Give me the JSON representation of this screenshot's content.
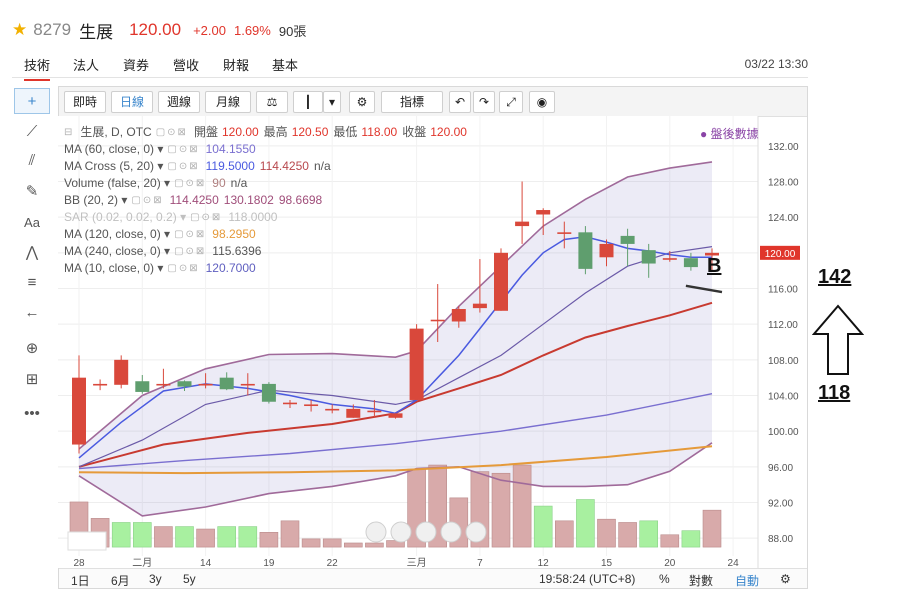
{
  "header": {
    "star_icon": "star-icon",
    "code": "8279",
    "name": "生展",
    "price": "120.00",
    "change": "+2.00",
    "percent": "1.69%",
    "volume": "90張"
  },
  "tabs": [
    "技術",
    "法人",
    "資券",
    "營收",
    "財報",
    "基本"
  ],
  "datetime": "03/22 13:30",
  "toolbar": {
    "periods": [
      "即時",
      "日線",
      "週線",
      "月線"
    ],
    "active_period": "日線",
    "indicator_label": "指標",
    "icons": [
      "scale-icon",
      "candlestick-icon",
      "dropdown-icon",
      "settings-icon",
      "undo-icon",
      "redo-icon",
      "fullscreen-icon",
      "camera-icon"
    ]
  },
  "left_tools": [
    "crosshair-icon",
    "line-icon",
    "fork-icon",
    "brush-icon",
    "Aa",
    "pattern-icon",
    "fib-icon",
    "arrow-left-icon",
    "zoom-icon",
    "ruler-icon",
    "more-icon"
  ],
  "indicators": {
    "main": {
      "label": "生展, D, OTC",
      "open_label": "開盤",
      "open": "120.00",
      "high_label": "最高",
      "high": "120.50",
      "low_label": "最低",
      "low": "118.00",
      "close_label": "收盤",
      "close": "120.00"
    },
    "rows": [
      {
        "label": "MA (60, close, 0)",
        "values": [
          "104.1550"
        ],
        "colors": [
          "#7a6fd0"
        ]
      },
      {
        "label": "MA Cross (5, 20)",
        "values": [
          "119.5000",
          "114.4250",
          "n/a"
        ],
        "colors": [
          "#4a5ae0",
          "#b8484d",
          "#555555"
        ]
      },
      {
        "label": "Volume (false, 20)",
        "values": [
          "90",
          "n/a"
        ],
        "colors": [
          "#b08080",
          "#555555"
        ]
      },
      {
        "label": "BB (20, 2)",
        "values": [
          "114.4250",
          "130.1802",
          "98.6698"
        ],
        "colors": [
          "#a04e7a",
          "#a04e7a",
          "#a04e7a"
        ]
      },
      {
        "label": "SAR (0.02, 0.02, 0.2)",
        "values": [
          "118.0000"
        ],
        "colors": [
          "#c0c0c0"
        ],
        "faded": true
      },
      {
        "label": "MA (120, close, 0)",
        "values": [
          "98.2950"
        ],
        "colors": [
          "#e59a3a"
        ]
      },
      {
        "label": "MA (240, close, 0)",
        "values": [
          "115.6396"
        ],
        "colors": [
          "#555555"
        ]
      },
      {
        "label": "MA (10, close, 0)",
        "values": [
          "120.7000"
        ],
        "colors": [
          "#6060c0"
        ]
      }
    ]
  },
  "after_hours_label": "● 盤後數據",
  "bottom_bar": {
    "ranges": [
      "1日",
      "6月",
      "3y",
      "5y"
    ],
    "time": "19:58:24 (UTC+8)",
    "percent": "%",
    "log": "對數",
    "auto": "自動",
    "settings_icon": "gear-icon"
  },
  "annotations": {
    "b_label": "B",
    "target": "142",
    "base": "118",
    "arrow_icon": "arrow-up-icon"
  },
  "chart_data": {
    "type": "candlestick",
    "y_ticks": [
      88,
      92,
      96,
      100,
      104,
      108,
      112,
      116,
      120,
      124,
      128,
      132
    ],
    "y_range": [
      86,
      134
    ],
    "last_price_tag": "120.00",
    "x_labels": [
      {
        "i": 0,
        "label": "28"
      },
      {
        "i": 3,
        "label": "二月"
      },
      {
        "i": 6,
        "label": "14"
      },
      {
        "i": 9,
        "label": "19"
      },
      {
        "i": 12,
        "label": "22"
      },
      {
        "i": 16,
        "label": "三月"
      },
      {
        "i": 19,
        "label": "7"
      },
      {
        "i": 22,
        "label": "12"
      },
      {
        "i": 25,
        "label": "15"
      },
      {
        "i": 28,
        "label": "20"
      },
      {
        "i": 31,
        "label": "24"
      }
    ],
    "candles": [
      {
        "o": 98.5,
        "h": 108.5,
        "l": 97.5,
        "c": 106
      },
      {
        "o": 105.3,
        "h": 105.8,
        "l": 104.6,
        "c": 105.3
      },
      {
        "o": 105.2,
        "h": 108.5,
        "l": 104.8,
        "c": 108
      },
      {
        "o": 105.6,
        "h": 106.3,
        "l": 104.2,
        "c": 104.4
      },
      {
        "o": 105.3,
        "h": 107,
        "l": 104.8,
        "c": 105.3
      },
      {
        "o": 105.6,
        "h": 105.7,
        "l": 104.5,
        "c": 105
      },
      {
        "o": 105.3,
        "h": 106.5,
        "l": 104.8,
        "c": 105.3
      },
      {
        "o": 106,
        "h": 106.6,
        "l": 104.6,
        "c": 104.7
      },
      {
        "o": 105.3,
        "h": 106.5,
        "l": 104,
        "c": 105.3
      },
      {
        "o": 105.3,
        "h": 105.5,
        "l": 103.1,
        "c": 103.3
      },
      {
        "o": 103.2,
        "h": 103.5,
        "l": 102.6,
        "c": 103.2
      },
      {
        "o": 103,
        "h": 103.5,
        "l": 102.2,
        "c": 103
      },
      {
        "o": 102.5,
        "h": 103,
        "l": 102,
        "c": 102.5
      },
      {
        "o": 101.5,
        "h": 103,
        "l": 101.5,
        "c": 102.5
      },
      {
        "o": 102.3,
        "h": 103.5,
        "l": 101.5,
        "c": 102.3
      },
      {
        "o": 101.5,
        "h": 102,
        "l": 101.4,
        "c": 102
      },
      {
        "o": 103.5,
        "h": 112,
        "l": 103.5,
        "c": 111.5
      },
      {
        "o": 112.5,
        "h": 116.5,
        "l": 110,
        "c": 112.5
      },
      {
        "o": 112.3,
        "h": 114,
        "l": 111.6,
        "c": 113.7
      },
      {
        "o": 113.8,
        "h": 119.3,
        "l": 113.3,
        "c": 114.3
      },
      {
        "o": 113.5,
        "h": 120.5,
        "l": 113.5,
        "c": 120
      },
      {
        "o": 123,
        "h": 128,
        "l": 121,
        "c": 123.5
      },
      {
        "o": 124.3,
        "h": 125,
        "l": 122,
        "c": 124.8
      },
      {
        "o": 122.3,
        "h": 123.5,
        "l": 120.5,
        "c": 122.3
      },
      {
        "o": 122.3,
        "h": 123,
        "l": 117.6,
        "c": 118.2
      },
      {
        "o": 119.5,
        "h": 121.5,
        "l": 118.5,
        "c": 121
      },
      {
        "o": 121.9,
        "h": 122.7,
        "l": 118.5,
        "c": 121
      },
      {
        "o": 120.3,
        "h": 121,
        "l": 117.2,
        "c": 118.8
      },
      {
        "o": 119.4,
        "h": 120.2,
        "l": 119,
        "c": 119.4
      },
      {
        "o": 119.4,
        "h": 120,
        "l": 118,
        "c": 118.4
      },
      {
        "o": 119.7,
        "h": 120.5,
        "l": 118,
        "c": 120
      }
    ],
    "volume": [
      {
        "v": 0.55,
        "up": false
      },
      {
        "v": 0.35,
        "up": false
      },
      {
        "v": 0.3,
        "up": true
      },
      {
        "v": 0.3,
        "up": true
      },
      {
        "v": 0.25,
        "up": false
      },
      {
        "v": 0.25,
        "up": true
      },
      {
        "v": 0.22,
        "up": false
      },
      {
        "v": 0.25,
        "up": true
      },
      {
        "v": 0.25,
        "up": true
      },
      {
        "v": 0.18,
        "up": false
      },
      {
        "v": 0.32,
        "up": false
      },
      {
        "v": 0.1,
        "up": false
      },
      {
        "v": 0.1,
        "up": false
      },
      {
        "v": 0.05,
        "up": false
      },
      {
        "v": 0.05,
        "up": false
      },
      {
        "v": 0.08,
        "up": false
      },
      {
        "v": 0.95,
        "up": false
      },
      {
        "v": 1.0,
        "up": false
      },
      {
        "v": 0.6,
        "up": false
      },
      {
        "v": 0.92,
        "up": false
      },
      {
        "v": 0.9,
        "up": false
      },
      {
        "v": 1.0,
        "up": false
      },
      {
        "v": 0.5,
        "up": true
      },
      {
        "v": 0.32,
        "up": false
      },
      {
        "v": 0.58,
        "up": true
      },
      {
        "v": 0.34,
        "up": false
      },
      {
        "v": 0.3,
        "up": false
      },
      {
        "v": 0.32,
        "up": true
      },
      {
        "v": 0.15,
        "up": false
      },
      {
        "v": 0.2,
        "up": true
      },
      {
        "v": 0.45,
        "up": false
      }
    ],
    "lines": {
      "ma5": [
        [
          0,
          97
        ],
        [
          2,
          101
        ],
        [
          4,
          104.5
        ],
        [
          6,
          105.3
        ],
        [
          8,
          104.8
        ],
        [
          10,
          104
        ],
        [
          12,
          103
        ],
        [
          14,
          102.5
        ],
        [
          15,
          102
        ],
        [
          16,
          103.5
        ],
        [
          17,
          106
        ],
        [
          18,
          108.5
        ],
        [
          19,
          111.5
        ],
        [
          20,
          114.5
        ],
        [
          21,
          117.5
        ],
        [
          22,
          120
        ],
        [
          23,
          121.5
        ],
        [
          24,
          121.8
        ],
        [
          25,
          121.2
        ],
        [
          26,
          120.5
        ],
        [
          27,
          120.2
        ],
        [
          28,
          119.8
        ],
        [
          29,
          119.5
        ],
        [
          30,
          119.5
        ]
      ],
      "ma10": [
        [
          0,
          96
        ],
        [
          3,
          99
        ],
        [
          6,
          103
        ],
        [
          9,
          104.6
        ],
        [
          12,
          104
        ],
        [
          15,
          103
        ],
        [
          16,
          103.5
        ],
        [
          18,
          106
        ],
        [
          20,
          108.5
        ],
        [
          22,
          112
        ],
        [
          24,
          115.5
        ],
        [
          26,
          118.5
        ],
        [
          28,
          120
        ],
        [
          30,
          120.7
        ]
      ],
      "ma20": [
        [
          0,
          96
        ],
        [
          4,
          98.5
        ],
        [
          8,
          99.8
        ],
        [
          12,
          100.8
        ],
        [
          15,
          102
        ],
        [
          16,
          103.3
        ],
        [
          18,
          104.8
        ],
        [
          20,
          106.3
        ],
        [
          22,
          108.5
        ],
        [
          24,
          110.5
        ],
        [
          26,
          111.8
        ],
        [
          28,
          113
        ],
        [
          30,
          114.4
        ]
      ],
      "ma60": [
        [
          0,
          95.8
        ],
        [
          5,
          96.7
        ],
        [
          10,
          97.5
        ],
        [
          15,
          98.6
        ],
        [
          20,
          100
        ],
        [
          25,
          101.8
        ],
        [
          30,
          104.2
        ]
      ],
      "ma120": [
        [
          0,
          95.4
        ],
        [
          5,
          95.3
        ],
        [
          10,
          95.4
        ],
        [
          15,
          95.6
        ],
        [
          20,
          96.2
        ],
        [
          25,
          97.1
        ],
        [
          30,
          98.3
        ]
      ],
      "bb_upper": [
        [
          0,
          98
        ],
        [
          3,
          104
        ],
        [
          6,
          107
        ],
        [
          9,
          108.6
        ],
        [
          12,
          108.7
        ],
        [
          15,
          108.3
        ],
        [
          16,
          109
        ],
        [
          18,
          114
        ],
        [
          20,
          118.5
        ],
        [
          22,
          123
        ],
        [
          24,
          126
        ],
        [
          26,
          128.5
        ],
        [
          28,
          129.5
        ],
        [
          30,
          130.2
        ]
      ],
      "bb_lower": [
        [
          0,
          95
        ],
        [
          3,
          90.5
        ],
        [
          6,
          91.5
        ],
        [
          9,
          93
        ],
        [
          12,
          93.8
        ],
        [
          15,
          95
        ],
        [
          16,
          95.8
        ],
        [
          18,
          96
        ],
        [
          20,
          94.5
        ],
        [
          22,
          93.8
        ],
        [
          24,
          93.8
        ],
        [
          26,
          94
        ],
        [
          28,
          95.5
        ],
        [
          30,
          98.7
        ]
      ]
    }
  }
}
